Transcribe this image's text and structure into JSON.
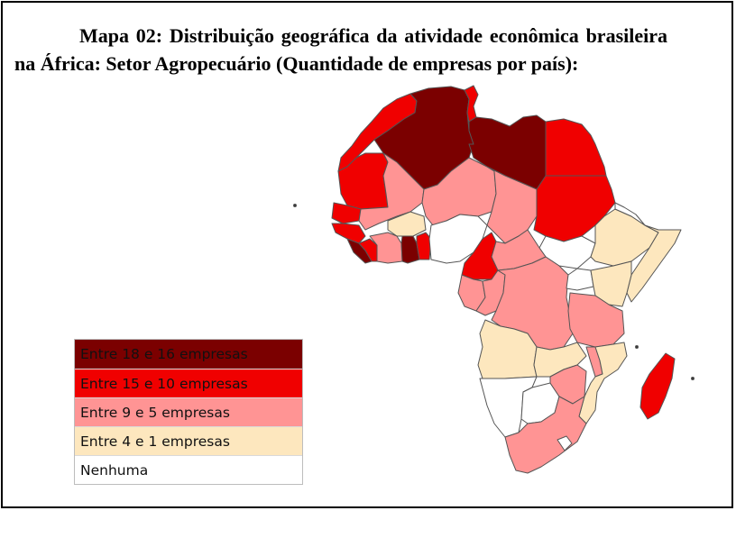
{
  "title": "Mapa 02: Distribuição geográfica da atividade econômica brasileira na África: Setor Agropecuário (Quantidade de empresas por país):",
  "legend": [
    {
      "label": "Entre 18 e 16 empresas",
      "color": "#7b0000"
    },
    {
      "label": "Entre 15 e 10 empresas",
      "color": "#f00000"
    },
    {
      "label": "Entre 9 e 5 empresas",
      "color": "#ff9494"
    },
    {
      "label": "Entre 4 e 1 empresas",
      "color": "#fde7be"
    },
    {
      "label": "Nenhuma",
      "color": "#ffffff"
    }
  ],
  "colors": {
    "border": "#555555",
    "outline": "#3a3a3a"
  }
}
